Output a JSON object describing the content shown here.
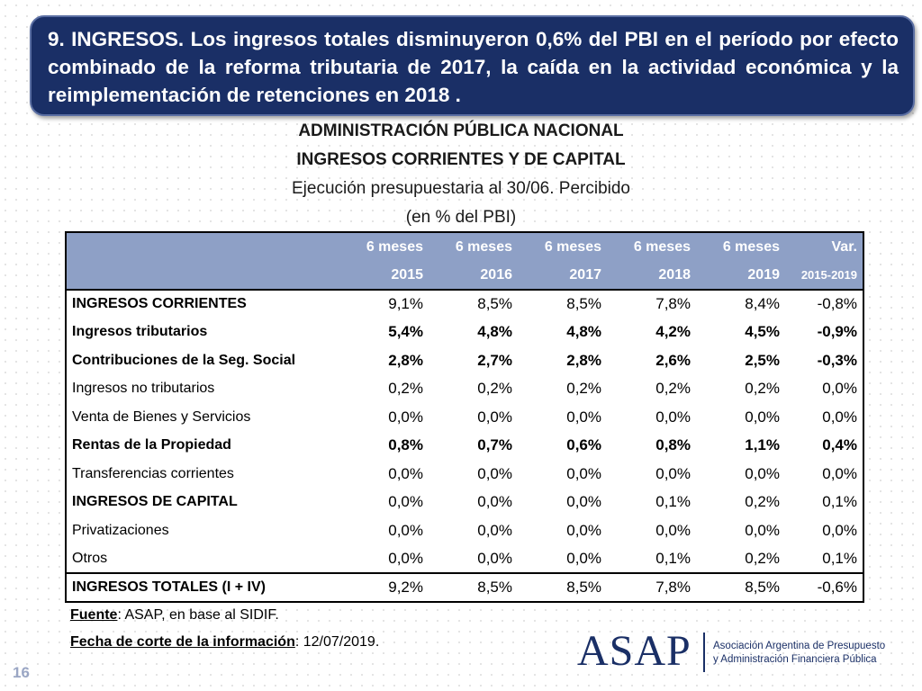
{
  "title": "9. INGRESOS. Los ingresos totales disminuyeron 0,6% del PBI en el período por efecto combinado de la reforma tributaria de 2017, la caída en la actividad económica y la reimplementación de retenciones en 2018 .",
  "heading": {
    "line1": "ADMINISTRACIÓN PÚBLICA NACIONAL",
    "line2": "INGRESOS CORRIENTES Y DE CAPITAL",
    "line3": "Ejecución presupuestaria al 30/06. Percibido",
    "line4": "(en % del PBI)"
  },
  "table": {
    "header_row1": [
      "6 meses",
      "6 meses",
      "6 meses",
      "6 meses",
      "6 meses",
      "Var."
    ],
    "header_row2": [
      "2015",
      "2016",
      "2017",
      "2018",
      "2019",
      "2015-2019"
    ],
    "rows": [
      {
        "label": "INGRESOS CORRIENTES",
        "values": [
          "9,1%",
          "8,5%",
          "8,5%",
          "7,8%",
          "8,4%",
          "-0,8%"
        ]
      },
      {
        "label": "Ingresos tributarios",
        "values": [
          "5,4%",
          "4,8%",
          "4,8%",
          "4,2%",
          "4,5%",
          "-0,9%"
        ]
      },
      {
        "label": "Contribuciones de la Seg. Social",
        "values": [
          "2,8%",
          "2,7%",
          "2,8%",
          "2,6%",
          "2,5%",
          "-0,3%"
        ]
      },
      {
        "label": "Ingresos no tributarios",
        "values": [
          "0,2%",
          "0,2%",
          "0,2%",
          "0,2%",
          "0,2%",
          "0,0%"
        ]
      },
      {
        "label": "Venta de Bienes y Servicios",
        "values": [
          "0,0%",
          "0,0%",
          "0,0%",
          "0,0%",
          "0,0%",
          "0,0%"
        ]
      },
      {
        "label": "Rentas de la Propiedad",
        "values": [
          "0,8%",
          "0,7%",
          "0,6%",
          "0,8%",
          "1,1%",
          "0,4%"
        ]
      },
      {
        "label": "Transferencias corrientes",
        "values": [
          "0,0%",
          "0,0%",
          "0,0%",
          "0,0%",
          "0,0%",
          "0,0%"
        ]
      },
      {
        "label": "INGRESOS DE CAPITAL",
        "values": [
          "0,0%",
          "0,0%",
          "0,0%",
          "0,1%",
          "0,2%",
          "0,1%"
        ]
      },
      {
        "label": "Privatizaciones",
        "values": [
          "0,0%",
          "0,0%",
          "0,0%",
          "0,0%",
          "0,0%",
          "0,0%"
        ]
      },
      {
        "label": "Otros",
        "values": [
          "0,0%",
          "0,0%",
          "0,0%",
          "0,1%",
          "0,2%",
          "0,1%"
        ]
      },
      {
        "label": "INGRESOS TOTALES (I + IV)",
        "values": [
          "9,2%",
          "8,5%",
          "8,5%",
          "7,8%",
          "8,5%",
          "-0,6%"
        ]
      }
    ]
  },
  "footnotes": {
    "source_label": "Fuente",
    "source_text": ": ASAP, en base al SIDIF.",
    "date_label": "Fecha de corte de la información",
    "date_text": ": 12/07/2019."
  },
  "page_number": "16",
  "logo": {
    "wordmark": "ASAP",
    "caption_line1": "Asociación Argentina de Presupuesto",
    "caption_line2": "y Administración Financiera Pública"
  },
  "colors": {
    "title_bg": "#1a2f66",
    "table_header_bg": "#8ea0c6",
    "brand": "#1a2f66"
  }
}
